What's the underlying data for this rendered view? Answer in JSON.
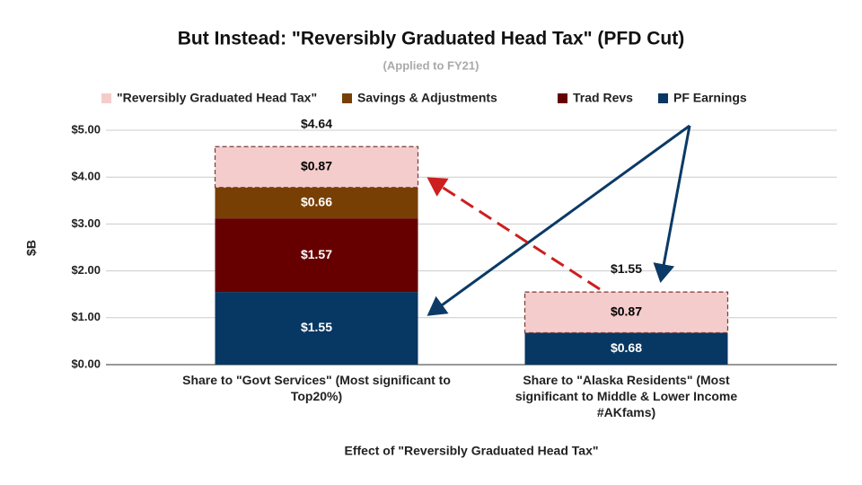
{
  "chart_data": {
    "type": "stacked_bar",
    "title": "But Instead: \"Reversibly Graduated Head Tax\" (PFD Cut)",
    "subtitle": "(Applied to FY21)",
    "y_axis_label": "$B",
    "x_axis_label": "Effect of \"Reversibly Graduated Head Tax\"",
    "categories": [
      "Share to \"Govt Services\" (Most significant to Top20%)",
      "Share to \"Alaska Residents\" (Most significant to Middle & Lower Income #AKfams)"
    ],
    "series": [
      {
        "name": "\"Reversibly Graduated Head Tax\"",
        "color": "#f4cccc",
        "label_color": "#000000",
        "dashed": true,
        "values": [
          0.87,
          0.87
        ],
        "value_labels": [
          "$0.87",
          "$0.87"
        ]
      },
      {
        "name": "Savings & Adjustments",
        "color": "#783f04",
        "label_color": "#ffffff",
        "values": [
          0.66,
          null
        ],
        "value_labels": [
          "$0.66",
          null
        ]
      },
      {
        "name": "Trad Revs",
        "color": "#660000",
        "label_color": "#ffffff",
        "values": [
          1.57,
          null
        ],
        "value_labels": [
          "$1.57",
          null
        ]
      },
      {
        "name": "PF Earnings",
        "color": "#073763",
        "label_color": "#ffffff",
        "values": [
          1.55,
          0.68
        ],
        "value_labels": [
          "$1.55",
          "$0.68"
        ]
      }
    ],
    "totals": {
      "values": [
        4.64,
        1.55
      ],
      "value_labels": [
        "$4.64",
        "$1.55"
      ]
    },
    "ylim": [
      0,
      5
    ],
    "yticks": [
      {
        "value": 0,
        "label": "$0.00"
      },
      {
        "value": 1,
        "label": "$1.00"
      },
      {
        "value": 2,
        "label": "$2.00"
      },
      {
        "value": 3,
        "label": "$3.00"
      },
      {
        "value": 4,
        "label": "$4.00"
      },
      {
        "value": 5,
        "label": "$5.00"
      }
    ],
    "grid": true,
    "legend": "top"
  }
}
